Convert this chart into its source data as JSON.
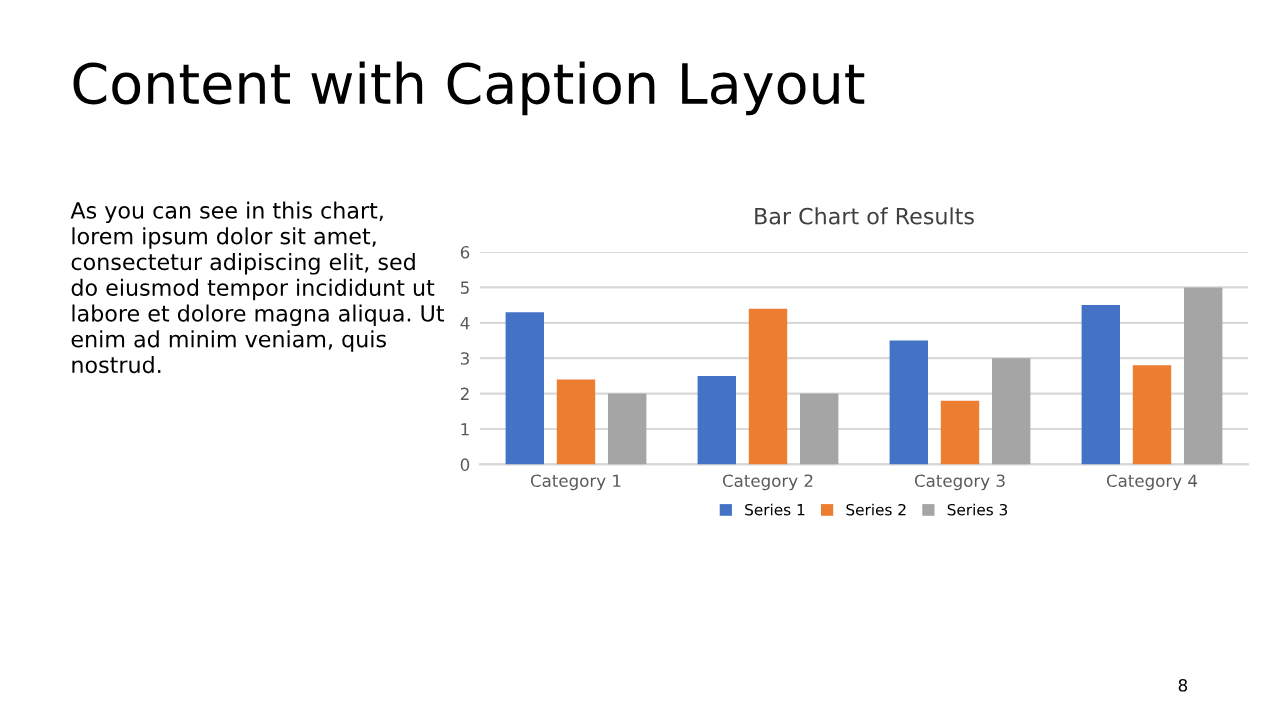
{
  "chart_data": {
    "type": "bar",
    "title": "Bar Chart of Results",
    "categories": [
      "Category 1",
      "Category 2",
      "Category 3",
      "Category 4"
    ],
    "series": [
      {
        "name": "Series 1",
        "color": "#4472c4",
        "values": [
          4.3,
          2.5,
          3.5,
          4.5
        ]
      },
      {
        "name": "Series 2",
        "color": "#ed7d31",
        "values": [
          2.4,
          4.4,
          1.8,
          2.8
        ]
      },
      {
        "name": "Series 3",
        "color": "#a5a5a5",
        "values": [
          2,
          2,
          3,
          5
        ]
      }
    ],
    "ylim": [
      0,
      6
    ],
    "yticks": [
      0,
      1,
      2,
      3,
      4,
      5,
      6
    ],
    "grid": "y",
    "legend": "bottom",
    "annotations": [
      "Content with Caption Layout",
      "As you can see in this chart,\nlorem ipsum dolor sit amet,\nconsectetur adipiscing elit, sed\ndo eiusmod tempor incididunt ut\nlabore et dolore magna aliqua. Ut\nenim ad minim veniam, quis\nnostrud.",
      "8"
    ]
  }
}
